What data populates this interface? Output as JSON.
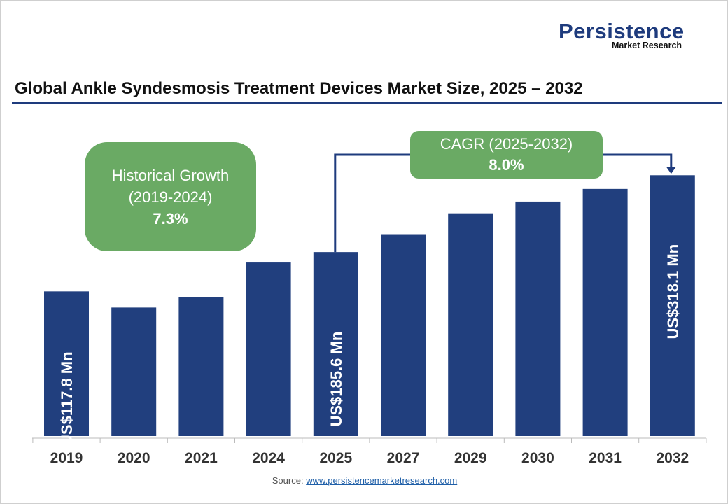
{
  "logo": {
    "line1": "Persistence",
    "line2": "Market Research"
  },
  "title": "Global Ankle Syndesmosis Treatment Devices Market Size, 2025 – 2032",
  "historical": {
    "label": "Historical Growth",
    "period": "(2019-2024)",
    "value": "7.3%"
  },
  "cagr": {
    "label": "CAGR (2025-2032)",
    "value": "8.0%"
  },
  "source": {
    "label": "Source:",
    "link": "www.persistencemarketresearch.com"
  },
  "colors": {
    "bar": "#213f7e",
    "box": "#6aaa64",
    "accent": "#1e3b7d"
  },
  "chart_data": {
    "type": "bar",
    "title": "Global Ankle Syndesmosis Treatment Devices Market Size, 2025 – 2032",
    "categories": [
      "2019",
      "2020",
      "2021",
      "2024",
      "2025",
      "2027",
      "2029",
      "2030",
      "2031",
      "2032"
    ],
    "values": [
      117.8,
      90,
      108,
      167.6,
      185.6,
      216.5,
      252.5,
      272.7,
      294.5,
      318.1
    ],
    "unit": "US$ Mn",
    "data_labels": {
      "2019": "US$117.8 Mn",
      "2025": "US$185.6 Mn",
      "2032": "US$318.1 Mn"
    },
    "grid": false,
    "legend": "none"
  }
}
